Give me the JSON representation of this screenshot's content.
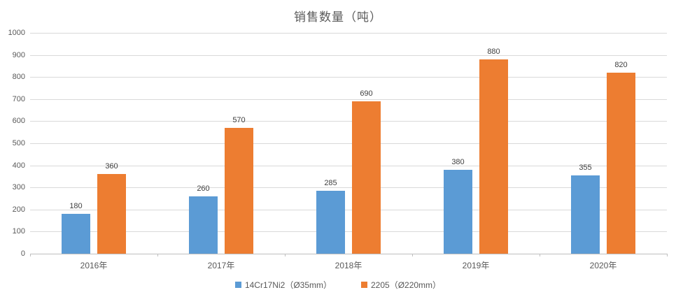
{
  "chart_data": {
    "type": "bar",
    "title": "销售数量（吨）",
    "categories": [
      "2016年",
      "2017年",
      "2018年",
      "2019年",
      "2020年"
    ],
    "series": [
      {
        "name": "14Cr17Ni2（Ø35mm）",
        "color": "#5B9BD5",
        "values": [
          180,
          260,
          285,
          380,
          355
        ]
      },
      {
        "name": "2205（Ø220mm）",
        "color": "#ED7D31",
        "values": [
          360,
          570,
          690,
          880,
          820
        ]
      }
    ],
    "ylim": [
      0,
      1000
    ],
    "ytick_step": 100,
    "ytick_labels": [
      "0",
      "100",
      "200",
      "300",
      "400",
      "500",
      "600",
      "700",
      "800",
      "900",
      "1000"
    ],
    "grid": true,
    "legend_position": "bottom",
    "data_labels": true,
    "colors": {
      "grid": "#D9D9D9",
      "axis": "#BFBFBF",
      "text": "#595959",
      "data_label": "#404040",
      "background": "#FFFFFF"
    }
  }
}
